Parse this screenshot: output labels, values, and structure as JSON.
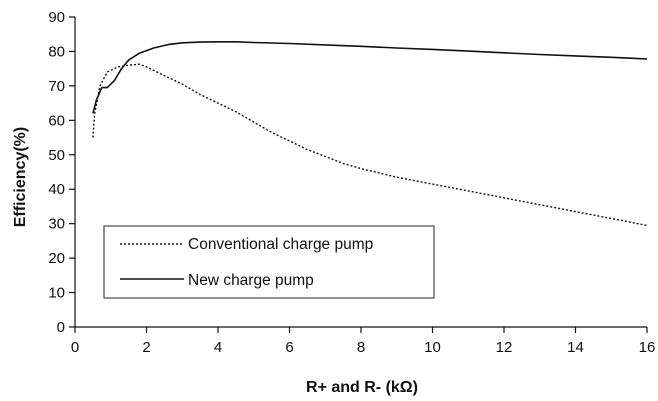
{
  "chart_data": {
    "type": "line",
    "title": "",
    "xlabel": "R+ and R- (kΩ)",
    "ylabel": "Efficiency(%)",
    "xlim": [
      0,
      16
    ],
    "ylim": [
      0,
      90
    ],
    "x_ticks": [
      0,
      2,
      4,
      6,
      8,
      10,
      12,
      14,
      16
    ],
    "y_ticks": [
      0,
      10,
      20,
      30,
      40,
      50,
      60,
      70,
      80,
      90
    ],
    "grid": false,
    "legend_position": "lower-left",
    "series": [
      {
        "name": "Conventional charge pump",
        "style": "dotted",
        "color": "#111111",
        "points": [
          [
            0.5,
            55
          ],
          [
            0.55,
            62
          ],
          [
            0.7,
            70
          ],
          [
            0.9,
            74
          ],
          [
            1.2,
            75.5
          ],
          [
            1.5,
            76
          ],
          [
            1.8,
            76.3
          ],
          [
            2.0,
            75.5
          ],
          [
            2.5,
            73
          ],
          [
            3.0,
            70.5
          ],
          [
            3.5,
            67.5
          ],
          [
            4.0,
            65
          ],
          [
            4.5,
            62.5
          ],
          [
            5.0,
            59.5
          ],
          [
            5.5,
            56.5
          ],
          [
            6.0,
            54
          ],
          [
            6.5,
            51.5
          ],
          [
            7.0,
            49.5
          ],
          [
            7.5,
            47.5
          ],
          [
            8.0,
            46
          ],
          [
            9.0,
            43.5
          ],
          [
            10.0,
            41.5
          ],
          [
            11.0,
            39.5
          ],
          [
            12.0,
            37.5
          ],
          [
            13.0,
            35.5
          ],
          [
            14.0,
            33.5
          ],
          [
            15.0,
            31.5
          ],
          [
            16.0,
            29.5
          ]
        ]
      },
      {
        "name": "New charge pump",
        "style": "solid",
        "color": "#111111",
        "points": [
          [
            0.5,
            62
          ],
          [
            0.6,
            66
          ],
          [
            0.75,
            69.5
          ],
          [
            0.9,
            69.5
          ],
          [
            1.1,
            71.5
          ],
          [
            1.3,
            75
          ],
          [
            1.5,
            77.5
          ],
          [
            1.8,
            79.5
          ],
          [
            2.2,
            81
          ],
          [
            2.6,
            82
          ],
          [
            3.0,
            82.5
          ],
          [
            3.5,
            82.7
          ],
          [
            4.0,
            82.8
          ],
          [
            4.5,
            82.8
          ],
          [
            5.0,
            82.6
          ],
          [
            6.0,
            82.3
          ],
          [
            7.0,
            81.9
          ],
          [
            8.0,
            81.5
          ],
          [
            9.0,
            81
          ],
          [
            10.0,
            80.6
          ],
          [
            11.0,
            80.1
          ],
          [
            12.0,
            79.6
          ],
          [
            13.0,
            79.1
          ],
          [
            14.0,
            78.7
          ],
          [
            15.0,
            78.3
          ],
          [
            16.0,
            77.8
          ]
        ]
      }
    ]
  }
}
